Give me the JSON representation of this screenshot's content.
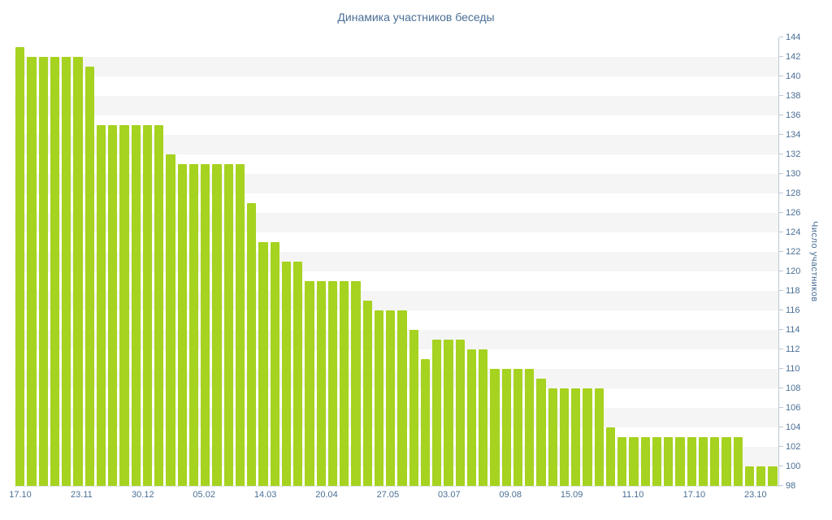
{
  "chart_data": {
    "type": "bar",
    "title": "Динамика участников беседы",
    "xlabel": "",
    "ylabel": "Число участников",
    "ylim": [
      98,
      144
    ],
    "y_tick_step": 2,
    "grid": "horizontal-bands",
    "legend_position": "none",
    "y_ticks": [
      98,
      100,
      102,
      104,
      106,
      108,
      110,
      112,
      114,
      116,
      118,
      120,
      122,
      124,
      126,
      128,
      130,
      132,
      134,
      136,
      138,
      140,
      142,
      144
    ],
    "x_tick_labels": [
      "17.10",
      "23.11",
      "30.12",
      "05.02",
      "14.03",
      "20.04",
      "27.05",
      "03.07",
      "09.08",
      "15.09",
      "11.10",
      "17.10",
      "23.10"
    ],
    "values": [
      143,
      142,
      142,
      142,
      142,
      142,
      141,
      135,
      135,
      135,
      135,
      135,
      135,
      132,
      131,
      131,
      131,
      131,
      131,
      131,
      127,
      123,
      123,
      121,
      121,
      119,
      119,
      119,
      119,
      119,
      117,
      116,
      116,
      116,
      114,
      111,
      113,
      113,
      113,
      112,
      112,
      110,
      110,
      110,
      110,
      109,
      108,
      108,
      108,
      108,
      108,
      104,
      103,
      103,
      103,
      103,
      103,
      103,
      103,
      103,
      103,
      103,
      103,
      100,
      100,
      100
    ]
  },
  "colors": {
    "bar": "#a6d220",
    "band": "#f5f5f5",
    "text": "#4a6f96",
    "axis_line": "#bcc9d6"
  }
}
